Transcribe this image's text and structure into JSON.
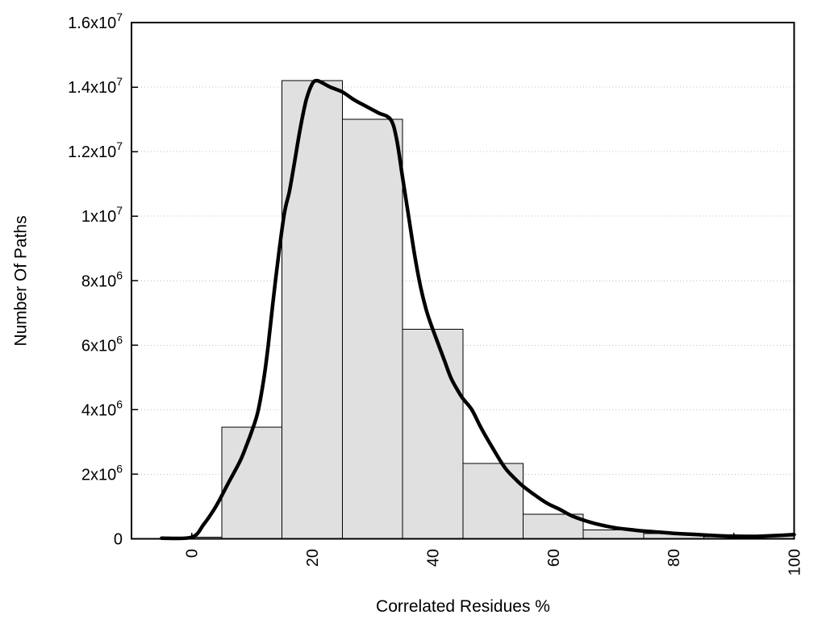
{
  "figure": {
    "background": "#ffffff",
    "bar_fill": "#e0e0e0",
    "bar_stroke": "#000000",
    "curve_color": "#000000",
    "grid_color": "#c0c0c0",
    "axis_color": "#000000",
    "text_color": "#000000"
  },
  "chart_data": {
    "type": "bar",
    "subtype": "histogram-with-curve",
    "title": "",
    "xlabel": "Correlated Residues %",
    "ylabel": "Number Of Paths",
    "xlim": [
      -10,
      100
    ],
    "ylim": [
      0,
      16000000
    ],
    "grid": "y-dotted",
    "legend_position": "none",
    "x_ticks": [
      {
        "value": 0,
        "label": "0"
      },
      {
        "value": 20,
        "label": "20"
      },
      {
        "value": 40,
        "label": "40"
      },
      {
        "value": 60,
        "label": "60"
      },
      {
        "value": 80,
        "label": "80"
      },
      {
        "value": 100,
        "label": "100"
      }
    ],
    "x_minor_tick_step": 10,
    "y_ticks": [
      {
        "value": 0,
        "label": "0"
      },
      {
        "value": 2000000,
        "label": "2x10^6"
      },
      {
        "value": 4000000,
        "label": "4x10^6"
      },
      {
        "value": 6000000,
        "label": "6x10^6"
      },
      {
        "value": 8000000,
        "label": "8x10^6"
      },
      {
        "value": 10000000,
        "label": "1x10^7"
      },
      {
        "value": 12000000,
        "label": "1.2x10^7"
      },
      {
        "value": 14000000,
        "label": "1.4x10^7"
      },
      {
        "value": 16000000,
        "label": "1.6x10^7"
      }
    ],
    "bars": {
      "bin_width": 10,
      "centers": [
        0,
        10,
        20,
        30,
        40,
        50,
        60,
        70,
        80,
        90,
        100
      ],
      "heights": [
        50000,
        3460000,
        14200000,
        13000000,
        6500000,
        2330000,
        760000,
        270000,
        160000,
        60000,
        125000
      ]
    },
    "curve_points": [
      [
        -5,
        20000
      ],
      [
        0,
        50000
      ],
      [
        2,
        450000
      ],
      [
        4,
        1000000
      ],
      [
        6,
        1700000
      ],
      [
        8,
        2400000
      ],
      [
        9,
        2850000
      ],
      [
        10,
        3350000
      ],
      [
        11,
        3950000
      ],
      [
        12,
        5000000
      ],
      [
        12.7,
        6000000
      ],
      [
        13.9,
        8000000
      ],
      [
        15.3,
        10000000
      ],
      [
        16.2,
        10750000
      ],
      [
        17,
        11600000
      ],
      [
        18,
        12700000
      ],
      [
        19,
        13600000
      ],
      [
        20,
        14100000
      ],
      [
        20.7,
        14200000
      ],
      [
        21.5,
        14150000
      ],
      [
        23,
        14000000
      ],
      [
        25,
        13850000
      ],
      [
        27,
        13600000
      ],
      [
        29,
        13400000
      ],
      [
        31,
        13200000
      ],
      [
        33,
        13000000
      ],
      [
        34,
        12400000
      ],
      [
        35,
        11200000
      ],
      [
        36,
        10000000
      ],
      [
        37,
        8800000
      ],
      [
        38,
        7800000
      ],
      [
        39,
        7050000
      ],
      [
        40,
        6500000
      ],
      [
        41,
        6000000
      ],
      [
        42,
        5500000
      ],
      [
        43,
        5000000
      ],
      [
        44,
        4650000
      ],
      [
        45,
        4350000
      ],
      [
        46.5,
        4000000
      ],
      [
        48,
        3450000
      ],
      [
        50,
        2800000
      ],
      [
        52,
        2200000
      ],
      [
        54,
        1800000
      ],
      [
        55,
        1630000
      ],
      [
        57,
        1350000
      ],
      [
        59,
        1100000
      ],
      [
        61,
        920000
      ],
      [
        63,
        720000
      ],
      [
        65,
        580000
      ],
      [
        67,
        470000
      ],
      [
        70,
        350000
      ],
      [
        73,
        280000
      ],
      [
        75,
        240000
      ],
      [
        78,
        200000
      ],
      [
        80,
        170000
      ],
      [
        83,
        140000
      ],
      [
        85,
        120000
      ],
      [
        88,
        90000
      ],
      [
        90,
        80000
      ],
      [
        93,
        75000
      ],
      [
        95,
        85000
      ],
      [
        98,
        110000
      ],
      [
        100,
        130000
      ]
    ]
  }
}
